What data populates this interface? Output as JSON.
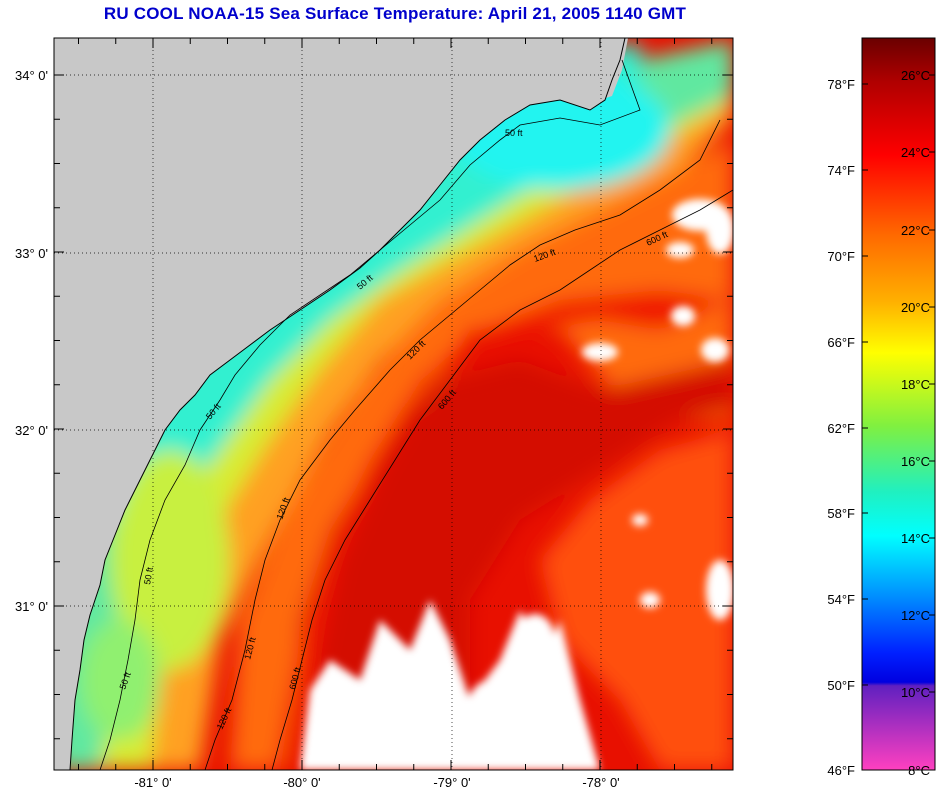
{
  "title": "RU COOL  NOAA-15  Sea Surface Temperature:  April 21, 2005 1140 GMT",
  "map": {
    "lat_labels": [
      "34° 0'",
      "33° 0'",
      "32° 0'",
      "31° 0'"
    ],
    "lon_labels": [
      "-81° 0'",
      "-80° 0'",
      "-79° 0'",
      "-78° 0'"
    ],
    "contours": [
      {
        "label": "50 ft"
      },
      {
        "label": "120 ft"
      },
      {
        "label": "600 ft"
      }
    ]
  },
  "colorbar": {
    "fahrenheit_labels": [
      "78°F",
      "74°F",
      "70°F",
      "66°F",
      "62°F",
      "58°F",
      "54°F",
      "50°F",
      "46°F"
    ],
    "celsius_labels": [
      "26°C",
      "24°C",
      "22°C",
      "20°C",
      "18°C",
      "16°C",
      "14°C",
      "12°C",
      "10°C",
      "8°C"
    ]
  },
  "colors": {
    "land": "#c8c8c8",
    "cloud": "#ffffff",
    "title": "#0000cc",
    "gulf_stream": "#e81000",
    "shelf_water": "#40e6c8"
  }
}
